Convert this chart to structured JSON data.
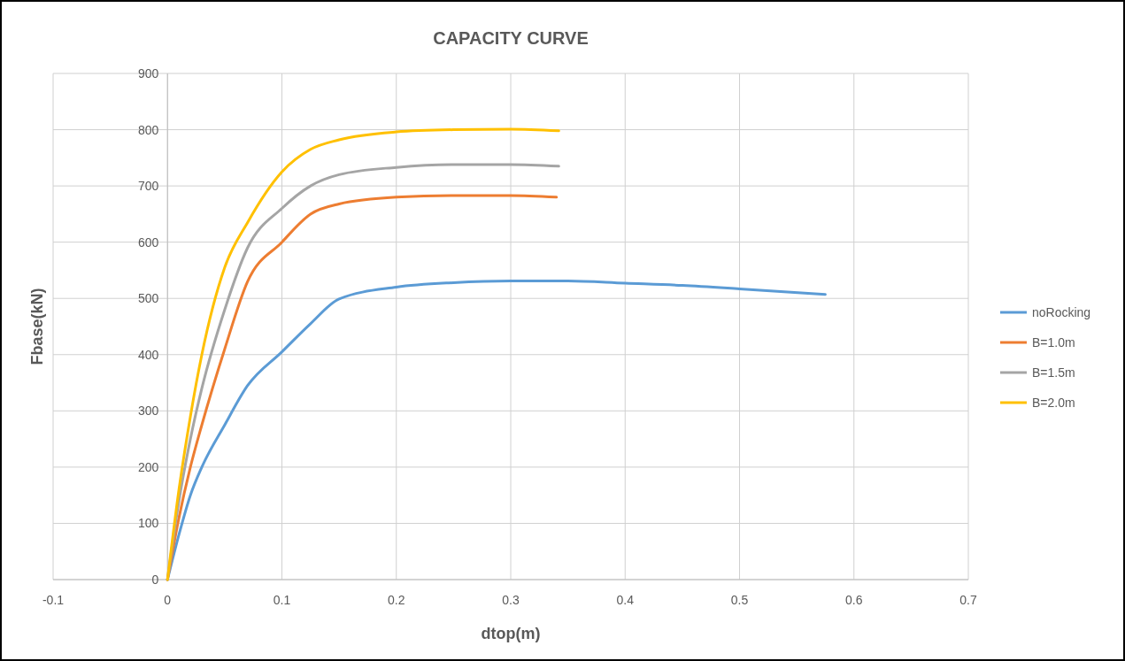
{
  "chart_data": {
    "type": "line",
    "title": "CAPACITY CURVE",
    "xlabel": "dtop(m)",
    "ylabel": "Fbase(kN)",
    "xlim": [
      -0.1,
      0.7
    ],
    "xticks": [
      -0.1,
      0,
      0.1,
      0.2,
      0.3,
      0.4,
      0.5,
      0.6,
      0.7
    ],
    "ylim": [
      0,
      900
    ],
    "yticks": [
      0,
      100,
      200,
      300,
      400,
      500,
      600,
      700,
      800,
      900
    ],
    "grid": true,
    "legend": "right",
    "marker": "none",
    "line_style": "solid",
    "series": [
      {
        "name": "noRocking",
        "color": "#5b9bd5",
        "x": [
          0,
          0.01,
          0.02,
          0.03,
          0.05,
          0.07,
          0.1,
          0.125,
          0.15,
          0.2,
          0.25,
          0.3,
          0.35,
          0.4,
          0.45,
          0.5,
          0.575
        ],
        "values": [
          0,
          80,
          150,
          200,
          275,
          345,
          405,
          455,
          499,
          520,
          528,
          531,
          531,
          527,
          523,
          517,
          507
        ]
      },
      {
        "name": "B=1.0m",
        "color": "#ed7d31",
        "x": [
          0,
          0.01,
          0.02,
          0.03,
          0.05,
          0.07,
          0.1,
          0.125,
          0.15,
          0.2,
          0.25,
          0.3,
          0.34
        ],
        "values": [
          0,
          110,
          200,
          275,
          410,
          530,
          600,
          650,
          668,
          680,
          683,
          683,
          680
        ]
      },
      {
        "name": "B=1.5m",
        "color": "#a5a5a5",
        "x": [
          0,
          0.01,
          0.02,
          0.03,
          0.05,
          0.07,
          0.1,
          0.125,
          0.15,
          0.2,
          0.25,
          0.3,
          0.342
        ],
        "values": [
          0,
          140,
          250,
          340,
          480,
          590,
          660,
          700,
          720,
          733,
          738,
          738,
          735
        ]
      },
      {
        "name": "B=2.0m",
        "color": "#ffc000",
        "x": [
          0,
          0.01,
          0.02,
          0.03,
          0.05,
          0.07,
          0.1,
          0.125,
          0.15,
          0.2,
          0.25,
          0.3,
          0.342
        ],
        "values": [
          0,
          160,
          290,
          400,
          555,
          635,
          725,
          765,
          782,
          796,
          800,
          801,
          798
        ]
      }
    ]
  }
}
